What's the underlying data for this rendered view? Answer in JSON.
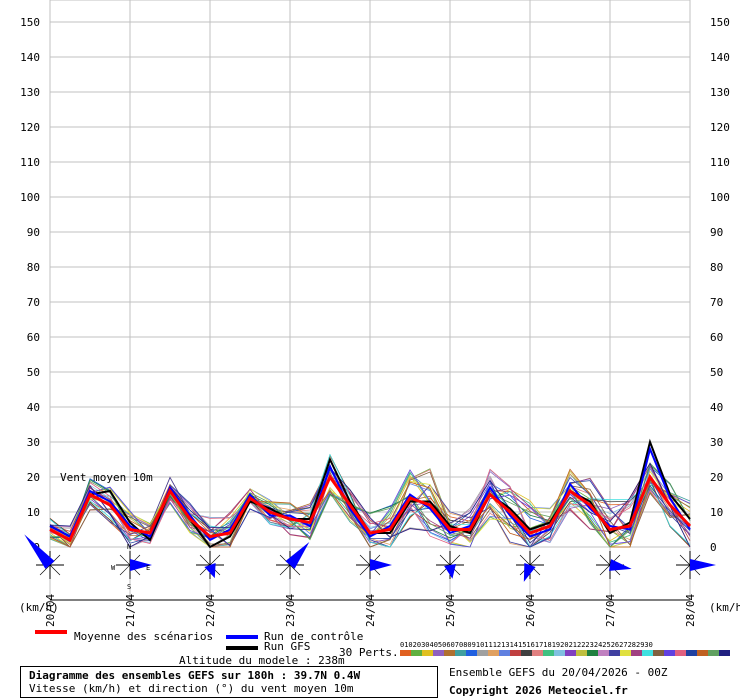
{
  "chart_data": {
    "type": "line",
    "title": "Diagramme des ensembles GEFS sur 180h : 39.7N 0.4W",
    "subtitle": "Vitesse (km/h) et direction (°) du vent moyen 10m",
    "ylabel": "(km/h)",
    "ylim": [
      0,
      150
    ],
    "yticks": [
      0,
      10,
      20,
      30,
      40,
      50,
      60,
      70,
      80,
      90,
      100,
      110,
      120,
      130,
      140,
      150
    ],
    "x_labels": [
      "20/04",
      "21/04",
      "22/04",
      "23/04",
      "24/04",
      "25/04",
      "26/04",
      "27/04",
      "28/04"
    ],
    "x_hours": [
      0,
      6,
      12,
      18,
      24,
      30,
      36,
      42,
      48,
      54,
      60,
      66,
      72,
      78,
      84,
      90,
      96,
      102,
      108,
      114,
      120,
      126,
      132,
      138,
      144,
      150,
      156,
      162,
      168,
      174,
      180,
      186,
      192
    ],
    "annotation": "Vent moyen 10m",
    "series": [
      {
        "name": "Moyenne des scénarios",
        "color": "#ff0000",
        "values": [
          5,
          2,
          15,
          12,
          5,
          4,
          16,
          8,
          3,
          4,
          14,
          10,
          8,
          7,
          20,
          12,
          4,
          5,
          14,
          12,
          5,
          5,
          15,
          10,
          4,
          6,
          16,
          12,
          5,
          6,
          20,
          12,
          6
        ]
      },
      {
        "name": "Run de contrôle",
        "color": "#0000ff",
        "values": [
          6,
          3,
          16,
          13,
          6,
          3,
          17,
          9,
          2,
          5,
          15,
          9,
          9,
          6,
          23,
          11,
          3,
          6,
          15,
          11,
          4,
          6,
          17,
          9,
          3,
          5,
          18,
          11,
          6,
          5,
          28,
          14,
          5
        ]
      },
      {
        "name": "Run GFS",
        "color": "#000000",
        "values": [
          6,
          3,
          15,
          16,
          7,
          2,
          16,
          8,
          0,
          3,
          13,
          11,
          8,
          8,
          25,
          13,
          4,
          4,
          13,
          13,
          6,
          4,
          15,
          11,
          5,
          7,
          16,
          13,
          4,
          7,
          30,
          15,
          8
        ]
      }
    ],
    "perturbation_count": 30
  },
  "legend": {
    "mean": "Moyenne des scénarios",
    "control": "Run de contrôle",
    "gfs": "Run GFS",
    "altitude": "Altitude du modele : 238m",
    "perts": "30 Perts.",
    "pert_numbers": "010203040506070809101112131415161718192021222324252627282930"
  },
  "footer": {
    "title": "Diagramme des ensembles GEFS sur 180h : 39.7N 0.4W",
    "subtitle": "Vitesse (km/h) et direction (°) du vent moyen 10m",
    "run": "Ensemble GEFS du 20/04/2026 - 00Z",
    "copyright": "Copyright 2026 Meteociel.fr"
  },
  "unit_left": "(km/h)",
  "unit_right": "(km/h)",
  "compass": {
    "w": "W",
    "e": "E",
    "s": "S",
    "n": "N"
  },
  "colors": {
    "grid": "#c0c0c0",
    "mean": "#ff0000",
    "control": "#0000ff",
    "gfs": "#000000",
    "arrow": "#0000ff",
    "perts": [
      "#e06020",
      "#60b040",
      "#e0c020",
      "#9060c0",
      "#b07030",
      "#40a0a0",
      "#2060e0",
      "#a0a0a0",
      "#e0a060",
      "#6080e0",
      "#c04040",
      "#404040",
      "#e08080",
      "#40c080",
      "#80c0e0",
      "#8040c0",
      "#c0c040",
      "#208040",
      "#c080c0",
      "#4040a0",
      "#e0e040",
      "#a04080",
      "#40e0e0",
      "#806040",
      "#6040e0",
      "#e06080",
      "#2040a0",
      "#c06020",
      "#60a060",
      "#202080"
    ]
  }
}
